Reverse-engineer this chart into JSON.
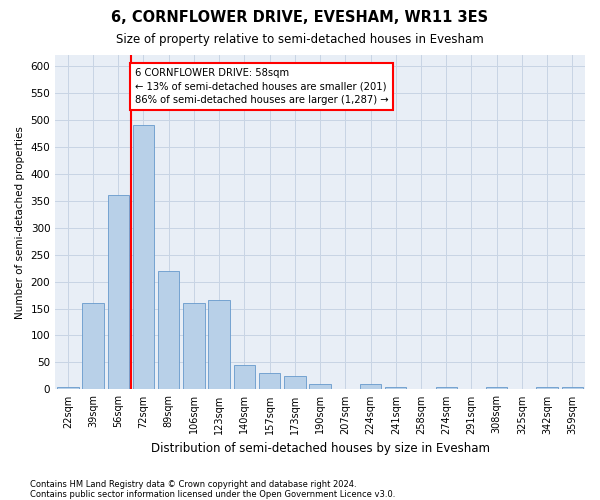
{
  "title": "6, CORNFLOWER DRIVE, EVESHAM, WR11 3ES",
  "subtitle": "Size of property relative to semi-detached houses in Evesham",
  "xlabel": "Distribution of semi-detached houses by size in Evesham",
  "ylabel": "Number of semi-detached properties",
  "categories": [
    "22sqm",
    "39sqm",
    "56sqm",
    "72sqm",
    "89sqm",
    "106sqm",
    "123sqm",
    "140sqm",
    "157sqm",
    "173sqm",
    "190sqm",
    "207sqm",
    "224sqm",
    "241sqm",
    "258sqm",
    "274sqm",
    "291sqm",
    "308sqm",
    "325sqm",
    "342sqm",
    "359sqm"
  ],
  "values": [
    5,
    160,
    360,
    490,
    220,
    160,
    165,
    45,
    30,
    25,
    10,
    0,
    10,
    5,
    0,
    5,
    0,
    5,
    0,
    5,
    5
  ],
  "bar_color": "#b8d0e8",
  "bar_edge_color": "#6699cc",
  "grid_color": "#c8d4e4",
  "background_color": "#e8eef6",
  "vline_color": "red",
  "vline_x_index": 2.5,
  "annotation_text": "6 CORNFLOWER DRIVE: 58sqm\n← 13% of semi-detached houses are smaller (201)\n86% of semi-detached houses are larger (1,287) →",
  "annotation_box_color": "white",
  "annotation_box_edge": "red",
  "footnote1": "Contains HM Land Registry data © Crown copyright and database right 2024.",
  "footnote2": "Contains public sector information licensed under the Open Government Licence v3.0.",
  "ylim": [
    0,
    620
  ],
  "yticks": [
    0,
    50,
    100,
    150,
    200,
    250,
    300,
    350,
    400,
    450,
    500,
    550,
    600
  ]
}
